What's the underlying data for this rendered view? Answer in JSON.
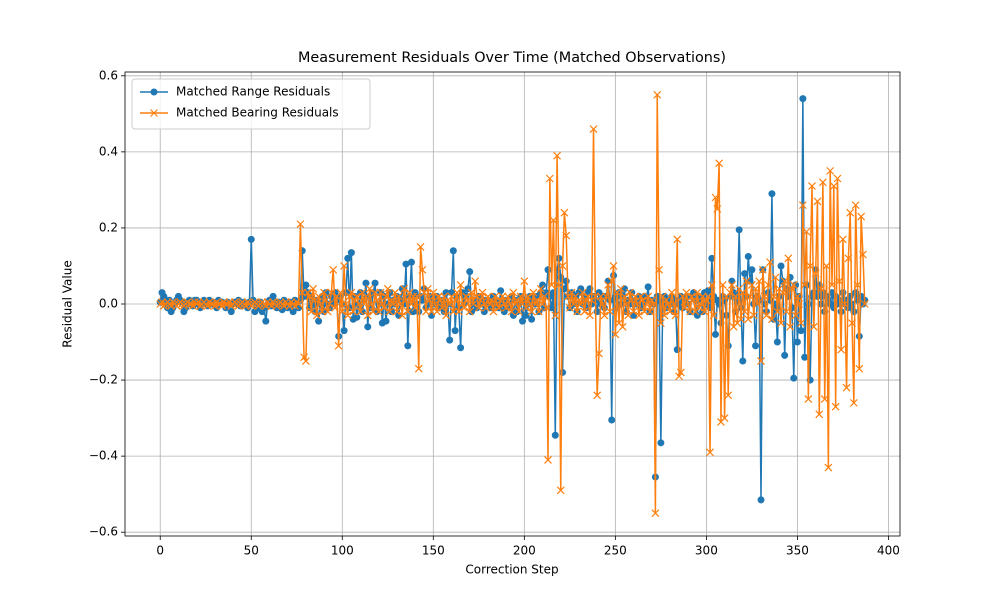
{
  "chart_data": {
    "type": "line",
    "title": "Measurement Residuals Over Time (Matched Observations)",
    "x_label": "Correction Step",
    "y_label": "Residual Value",
    "x": [
      0,
      1,
      2,
      3,
      4,
      5,
      6,
      7,
      8,
      9,
      10,
      11,
      12,
      13,
      14,
      15,
      16,
      17,
      18,
      19,
      20,
      21,
      22,
      23,
      24,
      25,
      26,
      27,
      28,
      29,
      30,
      31,
      32,
      33,
      34,
      35,
      36,
      37,
      38,
      39,
      40,
      41,
      42,
      43,
      44,
      45,
      46,
      47,
      48,
      49,
      50,
      51,
      52,
      53,
      54,
      55,
      56,
      57,
      58,
      59,
      60,
      61,
      62,
      63,
      64,
      65,
      66,
      67,
      68,
      69,
      70,
      71,
      72,
      73,
      74,
      75,
      76,
      77,
      78,
      79,
      80,
      81,
      82,
      83,
      84,
      85,
      86,
      87,
      88,
      89,
      90,
      91,
      92,
      93,
      94,
      95,
      96,
      97,
      98,
      99,
      100,
      101,
      102,
      103,
      104,
      105,
      106,
      107,
      108,
      109,
      110,
      111,
      112,
      113,
      114,
      115,
      116,
      117,
      118,
      119,
      120,
      121,
      122,
      123,
      124,
      125,
      126,
      127,
      128,
      129,
      130,
      131,
      132,
      133,
      134,
      135,
      136,
      137,
      138,
      139,
      140,
      141,
      142,
      143,
      144,
      145,
      146,
      147,
      148,
      149,
      150,
      151,
      152,
      153,
      154,
      155,
      156,
      157,
      158,
      159,
      160,
      161,
      162,
      163,
      164,
      165,
      166,
      167,
      168,
      169,
      170,
      171,
      172,
      173,
      174,
      175,
      176,
      177,
      178,
      179,
      180,
      181,
      182,
      183,
      184,
      185,
      186,
      187,
      188,
      189,
      190,
      191,
      192,
      193,
      194,
      195,
      196,
      197,
      198,
      199,
      200,
      201,
      202,
      203,
      204,
      205,
      206,
      207,
      208,
      209,
      210,
      211,
      212,
      213,
      214,
      215,
      216,
      217,
      218,
      219,
      220,
      221,
      222,
      223,
      224,
      225,
      226,
      227,
      228,
      229,
      230,
      231,
      232,
      233,
      234,
      235,
      236,
      237,
      238,
      239,
      240,
      241,
      242,
      243,
      244,
      245,
      246,
      247,
      248,
      249,
      250,
      251,
      252,
      253,
      254,
      255,
      256,
      257,
      258,
      259,
      260,
      261,
      262,
      263,
      264,
      265,
      266,
      267,
      268,
      269,
      270,
      271,
      272,
      273,
      274,
      275,
      276,
      277,
      278,
      279,
      280,
      281,
      282,
      283,
      284,
      285,
      286,
      287,
      288,
      289,
      290,
      291,
      292,
      293,
      294,
      295,
      296,
      297,
      298,
      299,
      300,
      301,
      302,
      303,
      304,
      305,
      306,
      307,
      308,
      309,
      310,
      311,
      312,
      313,
      314,
      315,
      316,
      317,
      318,
      319,
      320,
      321,
      322,
      323,
      324,
      325,
      326,
      327,
      328,
      329,
      330,
      331,
      332,
      333,
      334,
      335,
      336,
      337,
      338,
      339,
      340,
      341,
      342,
      343,
      344,
      345,
      346,
      347,
      348,
      349,
      350,
      351,
      352,
      353,
      354,
      355,
      356,
      357,
      358,
      359,
      360,
      361,
      362,
      363,
      364,
      365,
      366,
      367,
      368,
      369,
      370,
      371,
      372,
      373,
      374,
      375,
      376,
      377,
      378,
      379,
      380,
      381,
      382,
      383,
      384,
      385,
      386,
      387
    ],
    "series": [
      {
        "name": "Matched Range Residuals",
        "color": "#1f77b4",
        "marker": "circle",
        "values": [
          0.005,
          0.03,
          0.02,
          0.01,
          -0.01,
          0.01,
          -0.02,
          -0.01,
          0.0,
          0.01,
          0.02,
          0.01,
          0.005,
          -0.02,
          -0.01,
          0.0,
          0.01,
          0.0,
          -0.005,
          0.01,
          0.01,
          0.0,
          -0.01,
          0.005,
          0.01,
          0.0,
          -0.005,
          0.01,
          0.0,
          0.005,
          0.0,
          -0.01,
          0.01,
          0.0,
          0.005,
          0.0,
          -0.01,
          0.005,
          0.0,
          -0.02,
          0.0,
          0.005,
          0.0,
          0.01,
          -0.005,
          0.0,
          0.005,
          0.0,
          -0.01,
          0.005,
          0.17,
          0.01,
          -0.02,
          0.0,
          -0.01,
          0.005,
          -0.02,
          -0.01,
          -0.045,
          0.0,
          0.01,
          -0.005,
          0.02,
          0.0,
          -0.01,
          0.005,
          0.0,
          -0.015,
          0.01,
          0.0,
          -0.01,
          0.005,
          0.0,
          -0.02,
          0.01,
          0.0,
          -0.01,
          0.01,
          0.14,
          0.02,
          0.05,
          0.03,
          -0.01,
          0.02,
          0.0,
          -0.02,
          0.01,
          -0.045,
          0.0,
          0.02,
          -0.02,
          0.03,
          0.0,
          -0.01,
          0.02,
          0.0,
          0.03,
          0.01,
          -0.085,
          0.02,
          0.0,
          -0.07,
          0.03,
          0.12,
          -0.01,
          0.135,
          -0.04,
          0.02,
          -0.035,
          0.0,
          0.03,
          -0.02,
          0.01,
          0.055,
          -0.06,
          0.02,
          -0.01,
          0.03,
          0.055,
          -0.02,
          0.0,
          0.03,
          -0.05,
          0.02,
          -0.045,
          0.0,
          0.03,
          -0.02,
          0.01,
          0.0,
          0.02,
          -0.03,
          0.01,
          0.04,
          0.0,
          0.105,
          -0.11,
          0.02,
          0.11,
          -0.02,
          0.03,
          0.0,
          -0.02,
          0.02,
          0.01,
          0.04,
          -0.01,
          0.0,
          0.02,
          -0.03,
          0.01,
          0.0,
          0.02,
          -0.01,
          0.0,
          0.01,
          -0.02,
          0.03,
          0.0,
          -0.095,
          0.03,
          0.14,
          -0.07,
          0.02,
          -0.01,
          -0.115,
          0.03,
          0.0,
          0.02,
          0.04,
          0.085,
          -0.02,
          0.01,
          0.0,
          -0.01,
          0.02,
          0.01,
          0.0,
          -0.02,
          0.01,
          0.0,
          0.01,
          -0.01,
          0.02,
          0.0,
          0.005,
          -0.01,
          0.035,
          0.0,
          -0.02,
          0.01,
          0.0,
          -0.01,
          0.02,
          -0.03,
          0.01,
          -0.02,
          0.0,
          0.02,
          -0.045,
          0.01,
          -0.03,
          0.0,
          0.02,
          -0.04,
          0.01,
          0.0,
          0.02,
          -0.02,
          0.03,
          0.05,
          -0.01,
          0.03,
          0.09,
          0.02,
          -0.01,
          0.03,
          -0.345,
          0.09,
          0.12,
          0.07,
          -0.18,
          0.04,
          0.06,
          0.02,
          -0.01,
          0.03,
          0.0,
          0.02,
          -0.02,
          0.03,
          0.04,
          0.0,
          0.02,
          -0.01,
          0.03,
          0.04,
          0.0,
          0.02,
          0.01,
          -0.02,
          0.03,
          0.0,
          0.02,
          -0.01,
          0.02,
          0.06,
          0.01,
          -0.305,
          0.075,
          0.02,
          -0.01,
          0.03,
          0.0,
          0.02,
          0.04,
          -0.02,
          0.01,
          0.0,
          0.03,
          -0.03,
          0.01,
          0.0,
          0.02,
          -0.01,
          0.0,
          0.02,
          0.01,
          0.045,
          -0.02,
          0.01,
          0.0,
          -0.455,
          0.02,
          0.01,
          -0.365,
          0.0,
          0.02,
          -0.01,
          0.01,
          0.0,
          0.02,
          -0.02,
          0.01,
          -0.12,
          0.0,
          0.02,
          -0.01,
          0.01,
          0.02,
          0.0,
          -0.02,
          0.02,
          0.03,
          0.01,
          -0.03,
          0.02,
          0.01,
          -0.02,
          0.03,
          0.0,
          0.035,
          -0.01,
          0.12,
          0.02,
          -0.08,
          0.01,
          0.0,
          -0.05,
          0.02,
          0.01,
          -0.03,
          -0.11,
          0.02,
          0.06,
          0.03,
          -0.02,
          0.01,
          0.195,
          -0.01,
          -0.15,
          0.08,
          0.02,
          0.125,
          0.06,
          0.09,
          0.0,
          -0.11,
          0.02,
          0.01,
          -0.515,
          0.09,
          0.0,
          -0.02,
          0.03,
          0.01,
          0.29,
          -0.04,
          0.0,
          -0.1,
          0.02,
          0.1,
          0.06,
          -0.135,
          0.04,
          0.02,
          0.07,
          -0.01,
          -0.195,
          0.05,
          -0.1,
          0.02,
          -0.07,
          0.54,
          -0.14,
          0.05,
          0.0,
          -0.2,
          0.02,
          0.03,
          0.09,
          0.02,
          0.05,
          0.0,
          0.03,
          -0.02,
          0.02,
          0.01,
          0.0,
          0.03,
          -0.01,
          0.02,
          0.0,
          0.01,
          -0.02,
          0.03,
          0.0,
          0.01,
          -0.01,
          0.02,
          0.0,
          -0.02,
          0.03,
          0.01,
          -0.085,
          0.02,
          0.0,
          0.01
        ]
      },
      {
        "name": "Matched Bearing Residuals",
        "color": "#ff7f0e",
        "marker": "x",
        "values": [
          0.0,
          0.005,
          -0.005,
          0.0,
          0.005,
          0.0,
          -0.005,
          0.005,
          0.0,
          -0.005,
          0.0,
          0.005,
          0.0,
          -0.005,
          0.0,
          0.005,
          0.0,
          0.0,
          -0.005,
          0.005,
          0.0,
          0.005,
          -0.005,
          0.0,
          0.005,
          0.0,
          -0.005,
          0.005,
          0.0,
          0.0,
          -0.005,
          0.005,
          0.0,
          0.0,
          -0.005,
          0.005,
          0.0,
          0.0,
          0.005,
          -0.005,
          0.0,
          0.005,
          0.0,
          -0.005,
          0.0,
          0.005,
          0.0,
          -0.005,
          0.005,
          0.0,
          -0.005,
          0.0,
          0.005,
          0.0,
          -0.005,
          0.0,
          0.005,
          0.0,
          -0.005,
          0.005,
          0.0,
          -0.005,
          0.005,
          0.0,
          -0.005,
          0.0,
          0.005,
          0.0,
          -0.005,
          0.005,
          0.0,
          -0.005,
          0.005,
          0.0,
          -0.005,
          0.005,
          0.0,
          0.21,
          0.03,
          -0.14,
          -0.15,
          0.03,
          0.02,
          -0.02,
          0.04,
          0.01,
          -0.03,
          0.02,
          0.0,
          -0.02,
          0.03,
          0.01,
          -0.02,
          0.0,
          0.03,
          0.09,
          -0.01,
          0.02,
          -0.11,
          0.03,
          -0.02,
          0.1,
          0.0,
          -0.03,
          0.02,
          0.03,
          -0.02,
          0.01,
          0.02,
          0.0,
          -0.02,
          0.03,
          0.0,
          0.02,
          -0.03,
          0.04,
          0.0,
          -0.02,
          0.03,
          0.01,
          -0.02,
          0.03,
          0.0,
          -0.01,
          0.02,
          0.04,
          -0.02,
          0.01,
          0.0,
          0.03,
          -0.02,
          0.02,
          0.0,
          -0.03,
          0.04,
          0.01,
          -0.02,
          0.03,
          0.0,
          0.02,
          -0.01,
          0.02,
          -0.17,
          0.15,
          0.09,
          0.03,
          -0.02,
          0.04,
          0.01,
          -0.02,
          0.03,
          0.0,
          -0.02,
          0.02,
          0.01,
          -0.01,
          0.02,
          -0.03,
          0.01,
          0.0,
          0.02,
          -0.02,
          0.01,
          0.03,
          -0.02,
          0.05,
          0.0,
          -0.01,
          0.02,
          0.01,
          -0.02,
          0.03,
          0.0,
          0.06,
          0.02,
          -0.01,
          0.01,
          0.03,
          0.0,
          -0.01,
          0.02,
          0.0,
          0.01,
          -0.02,
          0.02,
          0.0,
          -0.01,
          0.01,
          0.02,
          0.0,
          -0.01,
          0.02,
          0.0,
          -0.02,
          0.03,
          0.0,
          0.01,
          -0.02,
          0.02,
          0.0,
          0.06,
          -0.01,
          0.02,
          0.0,
          -0.02,
          0.03,
          0.0,
          0.01,
          -0.02,
          0.04,
          0.0,
          0.02,
          -0.01,
          -0.41,
          0.33,
          0.05,
          0.22,
          -0.03,
          0.39,
          0.05,
          -0.49,
          0.1,
          0.24,
          0.18,
          0.02,
          -0.01,
          0.03,
          0.0,
          0.02,
          -0.02,
          0.01,
          0.0,
          0.03,
          -0.02,
          0.01,
          0.02,
          -0.03,
          0.01,
          0.46,
          0.02,
          -0.24,
          -0.13,
          0.02,
          0.0,
          -0.03,
          0.02,
          0.05,
          -0.02,
          0.06,
          0.1,
          -0.08,
          0.03,
          -0.05,
          0.04,
          -0.06,
          0.02,
          0.0,
          -0.03,
          0.03,
          0.01,
          -0.02,
          0.02,
          0.0,
          -0.03,
          0.02,
          0.01,
          -0.02,
          0.0,
          0.02,
          -0.02,
          0.01,
          0.0,
          -0.55,
          0.55,
          0.09,
          -0.05,
          0.02,
          -0.03,
          0.01,
          0.0,
          -0.02,
          0.03,
          0.0,
          -0.03,
          0.17,
          -0.19,
          -0.18,
          0.02,
          -0.01,
          0.03,
          0.0,
          -0.02,
          0.02,
          0.01,
          -0.02,
          0.03,
          -0.01,
          0.0,
          0.02,
          -0.02,
          0.01,
          0.02,
          -0.39,
          0.05,
          -0.03,
          0.28,
          0.25,
          0.37,
          -0.31,
          0.05,
          -0.3,
          0.02,
          -0.24,
          0.03,
          0.05,
          -0.06,
          0.02,
          -0.05,
          0.04,
          -0.04,
          0.03,
          -0.02,
          0.06,
          -0.04,
          0.02,
          0.05,
          -0.03,
          0.04,
          0.0,
          0.06,
          -0.15,
          0.09,
          0.02,
          -0.03,
          0.05,
          0.11,
          -0.04,
          0.02,
          0.07,
          -0.02,
          0.04,
          -0.05,
          0.03,
          0.06,
          -0.02,
          0.12,
          -0.06,
          0.04,
          0.05,
          -0.03,
          0.02,
          0.0,
          -0.05,
          0.26,
          0.05,
          0.19,
          -0.25,
          0.1,
          0.31,
          -0.06,
          0.08,
          0.27,
          -0.29,
          0.04,
          0.32,
          -0.25,
          0.1,
          -0.43,
          0.35,
          0.05,
          0.31,
          -0.27,
          0.33,
          0.06,
          -0.12,
          0.17,
          0.0,
          -0.22,
          0.12,
          0.24,
          -0.05,
          -0.26,
          0.26,
          0.05,
          -0.17,
          0.23,
          0.13,
          0.0
        ]
      }
    ],
    "xlim": [
      -19.35,
      406.35
    ],
    "ylim": [
      -0.61,
      0.61
    ],
    "xticks": [
      0,
      50,
      100,
      150,
      200,
      250,
      300,
      350,
      400
    ],
    "yticks": [
      {
        "value": -0.6,
        "label": "−0.6"
      },
      {
        "value": -0.4,
        "label": "−0.4"
      },
      {
        "value": -0.2,
        "label": "−0.2"
      },
      {
        "value": 0,
        "label": "0.0"
      },
      0.2,
      0.4,
      0.6
    ],
    "grid": true,
    "legend": "upper left"
  }
}
